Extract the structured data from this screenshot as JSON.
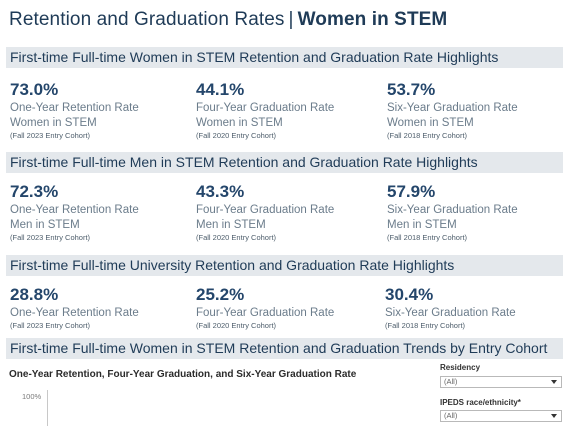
{
  "header": {
    "title_part1": "Retention and Graduation Rates",
    "separator": "|",
    "title_part2": "Women in STEM"
  },
  "sections": [
    {
      "heading": "First-time Full-time Women in STEM Retention and Graduation Rate Highlights",
      "metrics": [
        {
          "value": "73.0%",
          "label": "One-Year Retention Rate",
          "group": "Women in STEM",
          "cohort": "(Fall 2023 Entry Cohort)"
        },
        {
          "value": "44.1%",
          "label": "Four-Year Graduation Rate",
          "group": "Women in STEM",
          "cohort": "(Fall 2020 Entry Cohort)"
        },
        {
          "value": "53.7%",
          "label": "Six-Year Graduation Rate",
          "group": "Women in STEM",
          "cohort": "(Fall 2018 Entry Cohort)"
        }
      ]
    },
    {
      "heading": "First-time Full-time Men in STEM Retention and Graduation Rate Highlights",
      "metrics": [
        {
          "value": "72.3%",
          "label": "One-Year Retention Rate",
          "group": "Men in STEM",
          "cohort": "(Fall 2023 Entry Cohort)"
        },
        {
          "value": "43.3%",
          "label": "Four-Year Graduation Rate",
          "group": "Men in STEM",
          "cohort": "(Fall 2020 Entry Cohort)"
        },
        {
          "value": "57.9%",
          "label": "Six-Year Graduation Rate",
          "group": "Men in STEM",
          "cohort": "(Fall 2018 Entry Cohort)"
        }
      ]
    },
    {
      "heading": "First-time Full-time University Retention and Graduation Rate Highlights",
      "metrics": [
        {
          "value": "28.8%",
          "label": "One-Year Retention Rate",
          "cohort": "(Fall 2023 Entry Cohort)"
        },
        {
          "value": "25.2%",
          "label": "Four-Year Graduation Rate",
          "cohort": "(Fall 2020 Entry Cohort)"
        },
        {
          "value": "30.4%",
          "label": "Six-Year Graduation Rate",
          "cohort": "(Fall 2018 Entry Cohort)"
        }
      ]
    }
  ],
  "trends": {
    "heading": "First-time Full-time Women in STEM Retention and Graduation Trends by Entry Cohort",
    "chart_title": "One-Year Retention, Four-Year Graduation, and Six-Year Graduation Rate",
    "y_tick_top": "100%"
  },
  "filters": {
    "residency": {
      "label": "Residency",
      "value": "(All)"
    },
    "race": {
      "label": "IPEDS race/ethnicity*",
      "value": "(All)"
    }
  }
}
